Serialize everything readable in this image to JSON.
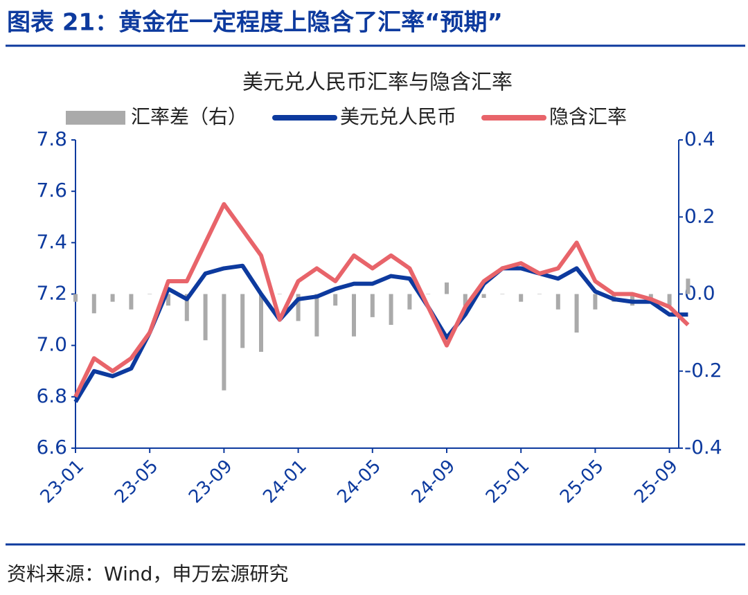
{
  "header": {
    "title": "图表 21：黄金在一定程度上隐含了汇率“预期”"
  },
  "chart_data": {
    "type": "line",
    "title": "美元兑人民币汇率与隐含汇率",
    "categories": [
      "23-01",
      null,
      null,
      null,
      "23-05",
      null,
      null,
      null,
      "23-09",
      null,
      null,
      null,
      "24-01",
      null,
      null,
      null,
      "24-05",
      null,
      null,
      null,
      "24-09",
      null,
      null,
      null,
      "25-01",
      null,
      null,
      null,
      "25-05",
      null,
      null,
      null,
      "25-09",
      null
    ],
    "series": [
      {
        "name": "汇率差（右）",
        "type": "bar",
        "axis": "y2",
        "color": "#aaaaaa",
        "values": [
          -0.02,
          -0.05,
          -0.02,
          -0.04,
          0,
          -0.03,
          -0.07,
          -0.12,
          -0.25,
          -0.14,
          -0.15,
          0,
          -0.07,
          -0.11,
          -0.03,
          -0.11,
          -0.06,
          -0.08,
          -0.04,
          0,
          0.03,
          -0.03,
          -0.01,
          0,
          -0.02,
          0,
          -0.04,
          -0.1,
          -0.04,
          -0.02,
          -0.03,
          -0.01,
          -0.03,
          0.04
        ]
      },
      {
        "name": "美元兑人民币",
        "color": "#0d3a9e",
        "values": [
          6.78,
          6.9,
          6.88,
          6.91,
          7.05,
          7.22,
          7.18,
          7.28,
          7.3,
          7.31,
          7.2,
          7.1,
          7.18,
          7.19,
          7.22,
          7.24,
          7.24,
          7.27,
          7.26,
          7.15,
          7.03,
          7.12,
          7.24,
          7.3,
          7.3,
          7.28,
          7.26,
          7.3,
          7.21,
          7.18,
          7.17,
          7.17,
          7.12,
          7.12
        ]
      },
      {
        "name": "隐含汇率",
        "color": "#e8646a",
        "values": [
          6.8,
          6.95,
          6.9,
          6.95,
          7.05,
          7.25,
          7.25,
          7.4,
          7.55,
          7.45,
          7.35,
          7.1,
          7.25,
          7.3,
          7.25,
          7.35,
          7.3,
          7.35,
          7.3,
          7.15,
          7.0,
          7.15,
          7.25,
          7.3,
          7.32,
          7.28,
          7.3,
          7.4,
          7.25,
          7.2,
          7.2,
          7.18,
          7.15,
          7.08
        ]
      }
    ],
    "ylim": [
      6.6,
      7.8
    ],
    "yticks": [
      6.6,
      6.8,
      {
        "value": 7,
        "label": "7.0"
      },
      7.2,
      7.4,
      7.6,
      7.8
    ],
    "y2lim": [
      -0.4,
      0.4
    ],
    "y2ticks": [
      -0.4,
      -0.2,
      {
        "value": 0,
        "label": "0.0"
      },
      0.2,
      0.4
    ]
  },
  "footer": {
    "source": "资料来源：Wind，申万宏源研究"
  }
}
